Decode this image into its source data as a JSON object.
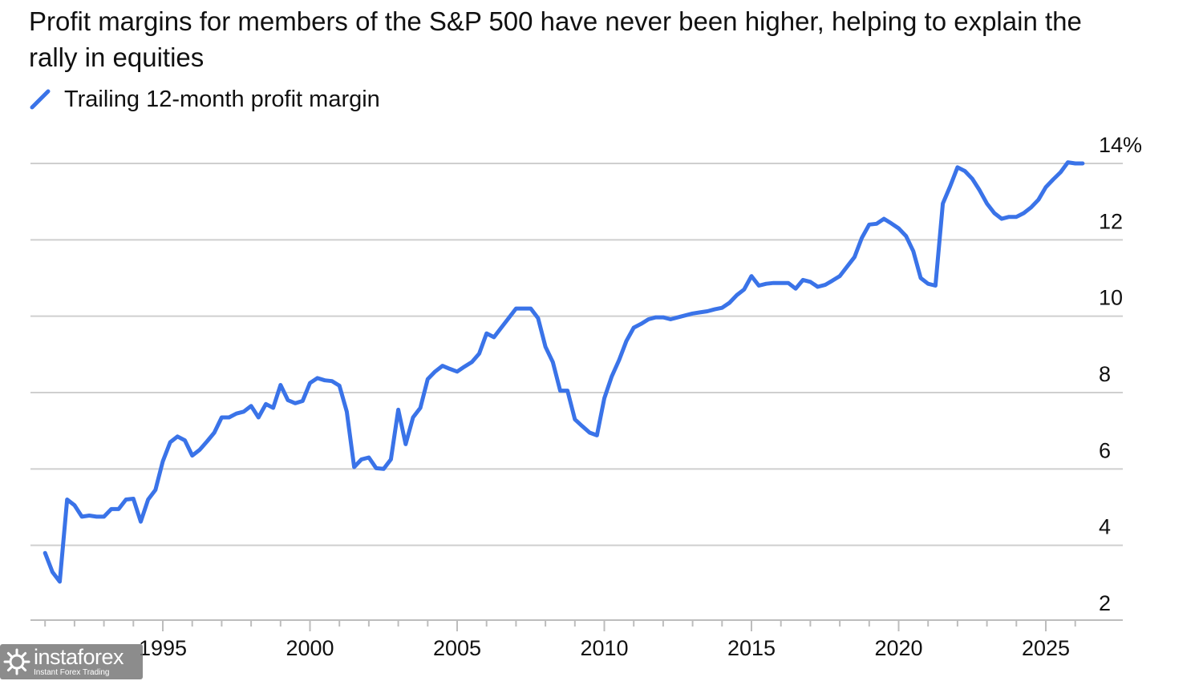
{
  "chart_data": {
    "type": "line",
    "title": "Profit margins for members of the S&P 500 have never been higher, helping to explain the rally in equities",
    "xlabel": "",
    "ylabel": "",
    "xlim": [
      1990.5,
      2026.8
    ],
    "ylim": [
      2,
      14
    ],
    "x_ticks": [
      1995,
      2000,
      2005,
      2010,
      2015,
      2020,
      2025
    ],
    "x_tick_labels": [
      "1995",
      "2000",
      "2005",
      "2010",
      "2015",
      "2020",
      "2025"
    ],
    "y_ticks": [
      2,
      4,
      6,
      8,
      10,
      12,
      14
    ],
    "y_tick_labels": [
      "2",
      "4",
      "6",
      "8",
      "10",
      "12",
      "14%"
    ],
    "y_axis_side": "right",
    "grid": "horizontal",
    "legend_position": "top-left",
    "series": [
      {
        "name": "Trailing 12-month profit margin",
        "color": "#3a73e8",
        "x": [
          1991.0,
          1991.25,
          1991.5,
          1991.75,
          1992.0,
          1992.25,
          1992.5,
          1992.75,
          1993.0,
          1993.25,
          1993.5,
          1993.75,
          1994.0,
          1994.25,
          1994.5,
          1994.75,
          1995.0,
          1995.25,
          1995.5,
          1995.75,
          1996.0,
          1996.25,
          1996.5,
          1996.75,
          1997.0,
          1997.25,
          1997.5,
          1997.75,
          1998.0,
          1998.25,
          1998.5,
          1998.75,
          1999.0,
          1999.25,
          1999.5,
          1999.75,
          2000.0,
          2000.25,
          2000.5,
          2000.75,
          2001.0,
          2001.25,
          2001.5,
          2001.75,
          2002.0,
          2002.25,
          2002.5,
          2002.75,
          2003.0,
          2003.25,
          2003.5,
          2003.75,
          2004.0,
          2004.25,
          2004.5,
          2004.75,
          2005.0,
          2005.25,
          2005.5,
          2005.75,
          2006.0,
          2006.25,
          2006.5,
          2006.75,
          2007.0,
          2007.25,
          2007.5,
          2007.75,
          2008.0,
          2008.25,
          2008.5,
          2008.75,
          2009.0,
          2009.25,
          2009.5,
          2009.75,
          2010.0,
          2010.25,
          2010.5,
          2010.75,
          2011.0,
          2011.25,
          2011.5,
          2011.75,
          2012.0,
          2012.25,
          2012.5,
          2012.75,
          2013.0,
          2013.25,
          2013.5,
          2013.75,
          2014.0,
          2014.25,
          2014.5,
          2014.75,
          2015.0,
          2015.25,
          2015.5,
          2015.75,
          2016.0,
          2016.25,
          2016.5,
          2016.75,
          2017.0,
          2017.25,
          2017.5,
          2017.75,
          2018.0,
          2018.25,
          2018.5,
          2018.75,
          2019.0,
          2019.25,
          2019.5,
          2019.75,
          2020.0,
          2020.25,
          2020.5,
          2020.75,
          2021.0,
          2021.25,
          2021.5,
          2021.75,
          2022.0,
          2022.25,
          2022.5,
          2022.75,
          2023.0,
          2023.25,
          2023.5,
          2023.75,
          2024.0,
          2024.25,
          2024.5,
          2024.75,
          2025.0,
          2025.25,
          2025.5,
          2025.75,
          2026.0,
          2026.25
        ],
        "values": [
          3.8,
          3.3,
          3.05,
          5.2,
          5.05,
          4.75,
          4.78,
          4.75,
          4.75,
          4.95,
          4.95,
          5.2,
          5.22,
          4.62,
          5.2,
          5.45,
          6.2,
          6.7,
          6.85,
          6.75,
          6.35,
          6.5,
          6.72,
          6.95,
          7.35,
          7.35,
          7.45,
          7.5,
          7.65,
          7.35,
          7.7,
          7.6,
          8.2,
          7.8,
          7.72,
          7.78,
          8.25,
          8.38,
          8.32,
          8.3,
          8.18,
          7.5,
          6.05,
          6.25,
          6.3,
          6.02,
          6.0,
          6.25,
          7.55,
          6.65,
          7.35,
          7.6,
          8.35,
          8.55,
          8.7,
          8.62,
          8.55,
          8.68,
          8.8,
          9.02,
          9.55,
          9.45,
          9.7,
          9.95,
          10.2,
          10.2,
          10.2,
          9.95,
          9.2,
          8.8,
          8.05,
          8.05,
          7.3,
          7.12,
          6.95,
          6.88,
          7.85,
          8.42,
          8.85,
          9.35,
          9.7,
          9.8,
          9.92,
          9.97,
          9.97,
          9.92,
          9.97,
          10.02,
          10.07,
          10.1,
          10.13,
          10.18,
          10.22,
          10.35,
          10.55,
          10.7,
          11.05,
          10.8,
          10.85,
          10.87,
          10.87,
          10.87,
          10.72,
          10.95,
          10.9,
          10.77,
          10.82,
          10.93,
          11.05,
          11.3,
          11.55,
          12.05,
          12.4,
          12.42,
          12.55,
          12.43,
          12.3,
          12.1,
          11.7,
          11.0,
          10.85,
          10.8,
          12.95,
          13.4,
          13.9,
          13.8,
          13.6,
          13.3,
          12.95,
          12.7,
          12.55,
          12.6,
          12.6,
          12.7,
          12.85,
          13.05,
          13.38,
          13.58,
          13.77,
          14.03,
          14.0,
          14.0
        ]
      }
    ]
  },
  "watermark": {
    "name": "instaforex",
    "tagline": "Instant Forex Trading"
  }
}
